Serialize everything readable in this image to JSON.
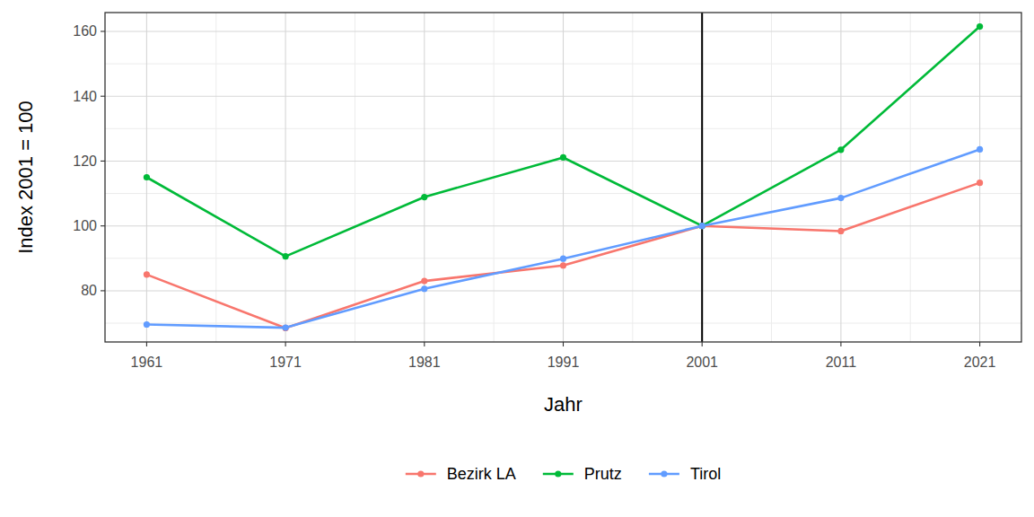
{
  "chart_data": {
    "type": "line",
    "x_label": "Jahr",
    "y_label": "Index 2001 = 100",
    "x": [
      1961,
      1971,
      1981,
      1991,
      2001,
      2011,
      2021
    ],
    "series": [
      {
        "name": "Bezirk LA",
        "color": "#F8766D",
        "marker": "circle",
        "values": [
          85,
          68.5,
          83,
          87.8,
          100,
          98.4,
          113.3
        ]
      },
      {
        "name": "Prutz",
        "color": "#00BA38",
        "marker": "circle",
        "values": [
          115,
          90.6,
          108.9,
          121.1,
          100,
          123.5,
          161.5
        ]
      },
      {
        "name": "Tirol",
        "color": "#619CFF",
        "marker": "circle",
        "values": [
          69.6,
          68.6,
          80.6,
          89.9,
          100,
          108.6,
          123.6
        ]
      }
    ],
    "xlim": [
      1958,
      2024
    ],
    "xticks": [
      1961,
      1971,
      1981,
      1991,
      2001,
      2011,
      2021
    ],
    "ylim": [
      64.2,
      165.8
    ],
    "yticks": [
      80,
      100,
      120,
      140,
      160
    ],
    "vline": 2001,
    "grid": true,
    "legend": "bottom"
  }
}
